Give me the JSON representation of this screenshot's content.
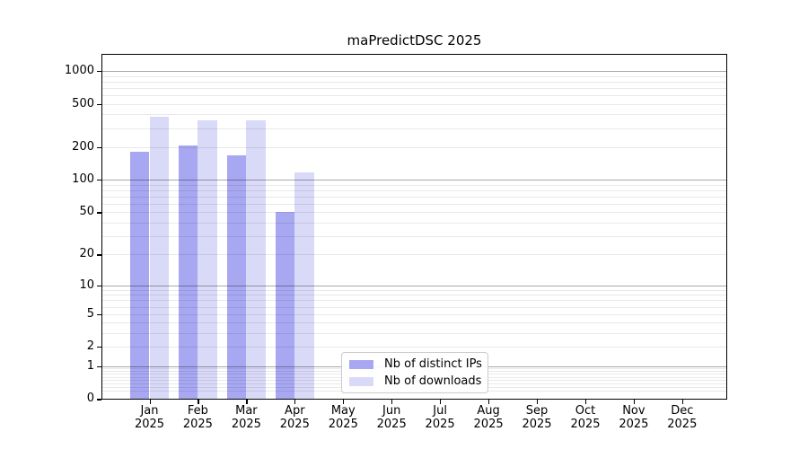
{
  "chart_data": {
    "type": "bar",
    "title": "maPredictDSC 2025",
    "categories": [
      "Jan 2025",
      "Feb 2025",
      "Mar 2025",
      "Apr 2025",
      "May 2025",
      "Jun 2025",
      "Jul 2025",
      "Aug 2025",
      "Sep 2025",
      "Oct 2025",
      "Nov 2025",
      "Dec 2025"
    ],
    "x_axis": {
      "months": [
        "Jan",
        "Feb",
        "Mar",
        "Apr",
        "May",
        "Jun",
        "Jul",
        "Aug",
        "Sep",
        "Oct",
        "Nov",
        "Dec"
      ],
      "year": "2025"
    },
    "series": [
      {
        "name": "Nb of distinct IPs",
        "color": "#a7a7f2",
        "values": [
          182,
          206,
          167,
          50,
          null,
          null,
          null,
          null,
          null,
          null,
          null,
          null
        ]
      },
      {
        "name": "Nb of downloads",
        "color": "#d9d9f8",
        "values": [
          378,
          353,
          350,
          118,
          null,
          null,
          null,
          null,
          null,
          null,
          null,
          null
        ]
      }
    ],
    "y_axis": {
      "scale": "log10(value+1)",
      "tick_values": [
        0,
        1,
        2,
        5,
        10,
        20,
        50,
        100,
        200,
        500,
        1000
      ],
      "tick_labels": [
        "0",
        "1",
        "2",
        "5",
        "10",
        "20",
        "50",
        "100",
        "200",
        "500",
        "1000"
      ],
      "major_grid_values": [
        1,
        10,
        100,
        1000
      ],
      "ylim": [
        0,
        1400
      ]
    },
    "grid": "horizontal major + log-minor gridlines",
    "legend_position": "lower center inside plot",
    "colors": {
      "major_grid": "#a9a9a9",
      "minor_grid": "#e9e9e9",
      "axis": "#000000",
      "legend_border": "#cccccc"
    }
  }
}
